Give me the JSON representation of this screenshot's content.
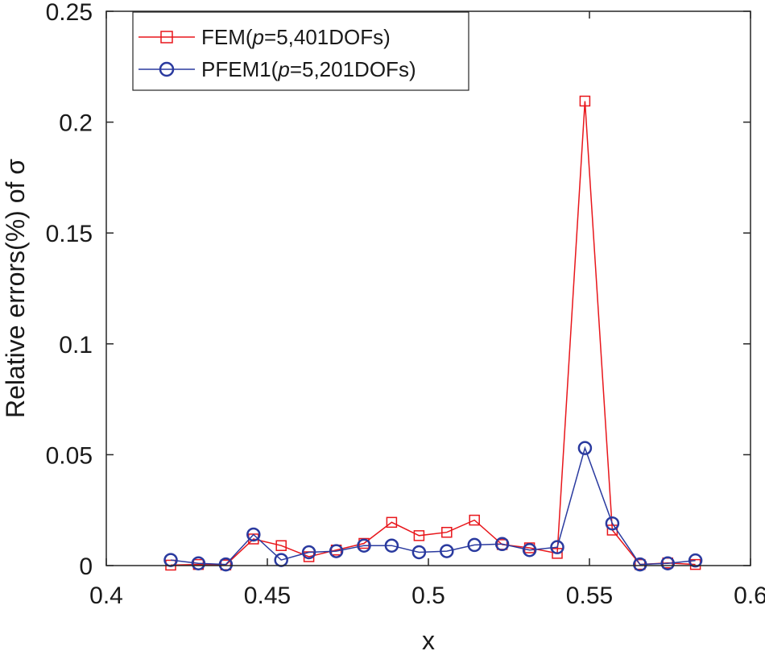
{
  "chart_data": {
    "type": "line",
    "title": "",
    "xlabel": "x",
    "ylabel": "Relative errors(%) of σ",
    "xlim": [
      0.4,
      0.6
    ],
    "ylim": [
      0,
      0.25
    ],
    "x_ticks": [
      0.4,
      0.45,
      0.5,
      0.55,
      0.6
    ],
    "x_tick_labels": [
      "0.4",
      "0.45",
      "0.5",
      "0.55",
      "0.6"
    ],
    "y_ticks": [
      0,
      0.05,
      0.1,
      0.15,
      0.2,
      0.25
    ],
    "y_tick_labels": [
      "0",
      "0.05",
      "0.1",
      "0.15",
      "0.2",
      "0.25"
    ],
    "grid": false,
    "legend_position": "top-left",
    "series": [
      {
        "name": "FEM(p=5,401DOFs)",
        "legend_parts": [
          "FEM(",
          "p",
          "=5,401DOFs)"
        ],
        "color": "#e8161b",
        "marker": "square",
        "x": [
          0.42,
          0.4286,
          0.4371,
          0.4457,
          0.4543,
          0.4629,
          0.4714,
          0.48,
          0.4886,
          0.4971,
          0.5057,
          0.5143,
          0.5229,
          0.5314,
          0.54,
          0.5486,
          0.5571,
          0.5657,
          0.5743,
          0.5829
        ],
        "y": [
          0.0002,
          0.0005,
          0.0003,
          0.012,
          0.009,
          0.004,
          0.007,
          0.01,
          0.0195,
          0.0135,
          0.015,
          0.0205,
          0.0095,
          0.008,
          0.0055,
          0.2095,
          0.016,
          0.0005,
          0.0012,
          0.0005
        ]
      },
      {
        "name": "PFEM1(p=5,201DOFs)",
        "legend_parts": [
          "PFEM1(",
          "p",
          "=5,201DOFs)"
        ],
        "color": "#2a3a9f",
        "marker": "circle",
        "x": [
          0.42,
          0.4286,
          0.4371,
          0.4457,
          0.4543,
          0.4629,
          0.4714,
          0.48,
          0.4886,
          0.4971,
          0.5057,
          0.5143,
          0.5229,
          0.5314,
          0.54,
          0.5486,
          0.5571,
          0.5657,
          0.5743,
          0.5829
        ],
        "y": [
          0.0025,
          0.001,
          0.0005,
          0.014,
          0.0025,
          0.006,
          0.0065,
          0.009,
          0.009,
          0.006,
          0.0065,
          0.0093,
          0.0097,
          0.007,
          0.0083,
          0.053,
          0.019,
          0.0005,
          0.001,
          0.0023
        ]
      }
    ]
  }
}
